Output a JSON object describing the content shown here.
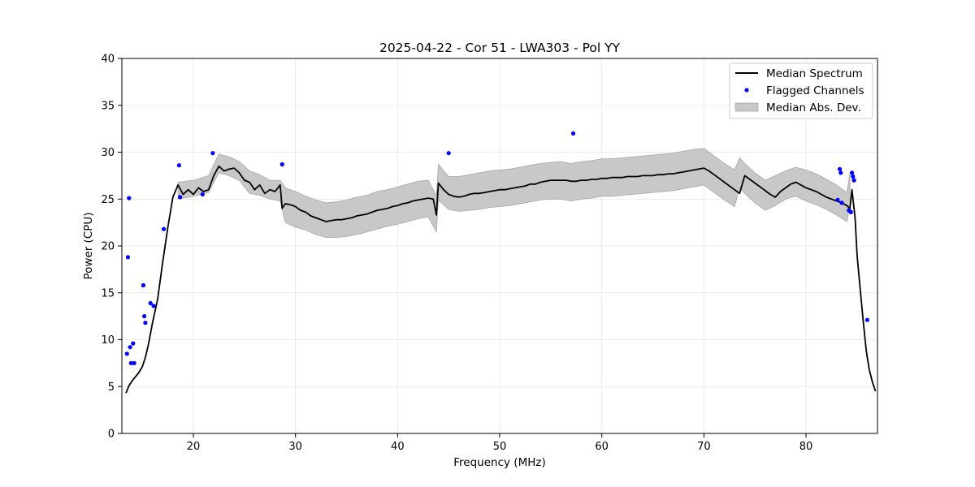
{
  "chart_data": {
    "type": "line",
    "title": "2025-04-22 - Cor 51 - LWA303 - Pol YY",
    "xlabel": "Frequency (MHz)",
    "ylabel": "Power (CPU)",
    "xlim": [
      13,
      87
    ],
    "ylim": [
      0,
      40
    ],
    "x_ticks": [
      20,
      30,
      40,
      50,
      60,
      70,
      80
    ],
    "y_ticks": [
      0,
      5,
      10,
      15,
      20,
      25,
      30,
      35,
      40
    ],
    "grid": true,
    "legend_position": "top-right",
    "colors": {
      "median": "#000000",
      "flagged": "#0000ff",
      "mad_fill": "#c8c8c8",
      "mad_edge": "#a8a8a8",
      "grid": "#e6e6e6"
    },
    "series": [
      {
        "name": "Median Spectrum",
        "style": "line",
        "x": [
          13.4,
          13.7,
          14.0,
          14.3,
          14.6,
          15.0,
          15.3,
          15.6,
          16.0,
          16.5,
          17.0,
          17.5,
          18.0,
          18.5,
          19.0,
          19.5,
          20.0,
          20.5,
          21.0,
          21.5,
          22.0,
          22.5,
          23.0,
          23.5,
          24.0,
          24.5,
          25.0,
          25.5,
          26.0,
          26.5,
          27.0,
          27.5,
          28.0,
          28.5,
          28.7,
          29.0,
          29.5,
          30.0,
          30.5,
          31.0,
          31.5,
          32.0,
          32.5,
          33.0,
          33.5,
          34.0,
          34.5,
          35.0,
          35.5,
          36.0,
          36.5,
          37.0,
          37.5,
          38.0,
          38.5,
          39.0,
          39.5,
          40.0,
          40.5,
          41.0,
          41.5,
          42.0,
          42.5,
          43.0,
          43.5,
          43.8,
          44.0,
          44.5,
          45.0,
          45.5,
          46.0,
          46.5,
          47.0,
          47.5,
          48.0,
          48.5,
          49.0,
          49.5,
          50.0,
          50.5,
          51.0,
          51.5,
          52.0,
          52.5,
          53.0,
          53.5,
          54.0,
          54.5,
          55.0,
          55.5,
          56.0,
          56.5,
          57.0,
          57.5,
          58.0,
          58.5,
          59.0,
          59.5,
          60.0,
          60.5,
          61.0,
          61.5,
          62.0,
          62.5,
          63.0,
          63.5,
          64.0,
          64.5,
          65.0,
          65.5,
          66.0,
          66.5,
          67.0,
          67.5,
          68.0,
          68.5,
          69.0,
          69.5,
          70.0,
          70.5,
          71.0,
          71.5,
          72.0,
          72.5,
          73.0,
          73.5,
          74.0,
          74.5,
          75.0,
          75.5,
          76.0,
          76.5,
          77.0,
          77.5,
          78.0,
          78.5,
          79.0,
          79.5,
          80.0,
          80.5,
          81.0,
          81.5,
          82.0,
          82.5,
          83.0,
          83.5,
          84.0,
          84.3,
          84.5,
          84.8,
          85.0,
          85.3,
          85.6,
          85.9,
          86.2,
          86.5,
          86.8
        ],
        "values": [
          4.3,
          5.1,
          5.6,
          6.0,
          6.4,
          7.1,
          8.1,
          9.5,
          11.8,
          14.3,
          18.3,
          22.0,
          25.2,
          26.5,
          25.5,
          26.0,
          25.5,
          26.2,
          25.8,
          26.0,
          27.5,
          28.5,
          28.0,
          28.2,
          28.3,
          27.8,
          27.0,
          26.8,
          26.0,
          26.5,
          25.6,
          26.0,
          25.8,
          26.5,
          24.0,
          24.5,
          24.4,
          24.2,
          23.8,
          23.6,
          23.2,
          23.0,
          22.8,
          22.6,
          22.7,
          22.8,
          22.8,
          22.9,
          23.0,
          23.2,
          23.3,
          23.4,
          23.6,
          23.8,
          23.9,
          24.0,
          24.2,
          24.3,
          24.5,
          24.6,
          24.8,
          24.9,
          25.0,
          25.1,
          25.0,
          23.3,
          26.7,
          26.0,
          25.5,
          25.3,
          25.2,
          25.3,
          25.5,
          25.6,
          25.6,
          25.7,
          25.8,
          25.9,
          26.0,
          26.0,
          26.1,
          26.2,
          26.3,
          26.4,
          26.6,
          26.6,
          26.8,
          26.9,
          27.0,
          27.0,
          27.0,
          27.0,
          26.9,
          26.9,
          27.0,
          27.0,
          27.1,
          27.1,
          27.2,
          27.2,
          27.3,
          27.3,
          27.3,
          27.4,
          27.4,
          27.4,
          27.5,
          27.5,
          27.5,
          27.6,
          27.6,
          27.7,
          27.7,
          27.8,
          27.9,
          28.0,
          28.1,
          28.2,
          28.3,
          28.0,
          27.6,
          27.2,
          26.8,
          26.4,
          26.0,
          25.6,
          27.5,
          27.1,
          26.7,
          26.3,
          25.9,
          25.5,
          25.2,
          25.8,
          26.2,
          26.6,
          26.8,
          26.5,
          26.2,
          26.0,
          25.8,
          25.5,
          25.2,
          25.0,
          24.8,
          24.6,
          24.3,
          24.0,
          26.0,
          23.0,
          19.0,
          15.5,
          12.0,
          8.8,
          6.8,
          5.5,
          4.5
        ]
      },
      {
        "name": "Flagged Channels",
        "style": "scatter",
        "x": [
          13.5,
          13.6,
          13.7,
          13.8,
          13.9,
          14.1,
          14.2,
          15.1,
          15.2,
          15.3,
          15.8,
          16.1,
          17.1,
          18.6,
          18.7,
          20.9,
          21.9,
          28.7,
          45.0,
          57.2,
          83.1,
          83.3,
          83.4,
          83.5,
          84.2,
          84.4,
          84.5,
          84.6,
          84.7,
          86.0
        ],
        "values": [
          8.5,
          18.8,
          25.1,
          9.2,
          7.5,
          9.6,
          7.5,
          15.8,
          12.5,
          11.8,
          13.9,
          13.6,
          21.8,
          28.6,
          25.2,
          25.5,
          29.9,
          28.7,
          29.9,
          32.0,
          24.9,
          28.2,
          27.8,
          24.6,
          23.8,
          23.6,
          27.8,
          27.4,
          27.0,
          12.1
        ]
      },
      {
        "name": "Median Abs. Dev.",
        "style": "band",
        "x": [
          18.5,
          20.0,
          21.5,
          22.5,
          23.5,
          24.5,
          25.5,
          26.5,
          27.5,
          28.5,
          29.0,
          30.0,
          31.0,
          32.0,
          33.0,
          34.0,
          35.0,
          36.0,
          37.0,
          38.0,
          39.0,
          40.0,
          41.0,
          42.0,
          43.0,
          43.8,
          44.0,
          45.0,
          46.0,
          47.0,
          48.0,
          49.0,
          50.0,
          51.0,
          52.0,
          53.0,
          54.0,
          55.0,
          56.0,
          57.0,
          58.0,
          59.0,
          60.0,
          61.0,
          62.0,
          63.0,
          64.0,
          65.0,
          66.0,
          67.0,
          68.0,
          69.0,
          70.0,
          71.0,
          72.0,
          73.0,
          73.5,
          74.0,
          75.0,
          76.0,
          77.0,
          78.0,
          79.0,
          80.0,
          81.0,
          82.0,
          83.0,
          84.0,
          84.3
        ],
        "low": [
          25.0,
          25.3,
          25.7,
          27.8,
          27.5,
          27.0,
          25.6,
          25.4,
          25.0,
          24.8,
          22.5,
          22.0,
          21.7,
          21.2,
          20.9,
          20.9,
          21.0,
          21.2,
          21.5,
          21.8,
          22.1,
          22.3,
          22.6,
          22.9,
          23.1,
          21.5,
          24.9,
          23.9,
          23.7,
          23.8,
          23.9,
          24.1,
          24.2,
          24.3,
          24.5,
          24.7,
          24.9,
          25.0,
          25.0,
          24.8,
          25.0,
          25.1,
          25.3,
          25.3,
          25.4,
          25.5,
          25.6,
          25.7,
          25.8,
          25.9,
          26.1,
          26.3,
          26.5,
          25.7,
          24.9,
          24.2,
          26.2,
          25.6,
          24.6,
          23.8,
          24.3,
          25.0,
          25.3,
          24.8,
          24.4,
          23.9,
          23.3,
          22.6,
          24.2
        ],
        "high": [
          26.8,
          27.0,
          27.5,
          29.8,
          29.5,
          29.0,
          28.0,
          27.6,
          27.0,
          27.0,
          26.2,
          25.8,
          25.3,
          24.9,
          24.6,
          24.7,
          24.9,
          25.2,
          25.4,
          25.8,
          26.0,
          26.3,
          26.6,
          26.9,
          27.0,
          25.4,
          28.7,
          27.4,
          27.4,
          27.6,
          27.8,
          28.0,
          28.1,
          28.2,
          28.4,
          28.6,
          28.8,
          28.9,
          29.0,
          28.8,
          29.0,
          29.1,
          29.3,
          29.3,
          29.4,
          29.5,
          29.6,
          29.7,
          29.8,
          29.9,
          30.1,
          30.3,
          30.4,
          29.6,
          28.8,
          28.1,
          29.4,
          28.8,
          27.8,
          27.0,
          27.5,
          28.0,
          28.4,
          28.1,
          27.7,
          27.1,
          26.5,
          25.7,
          27.8
        ]
      }
    ]
  }
}
